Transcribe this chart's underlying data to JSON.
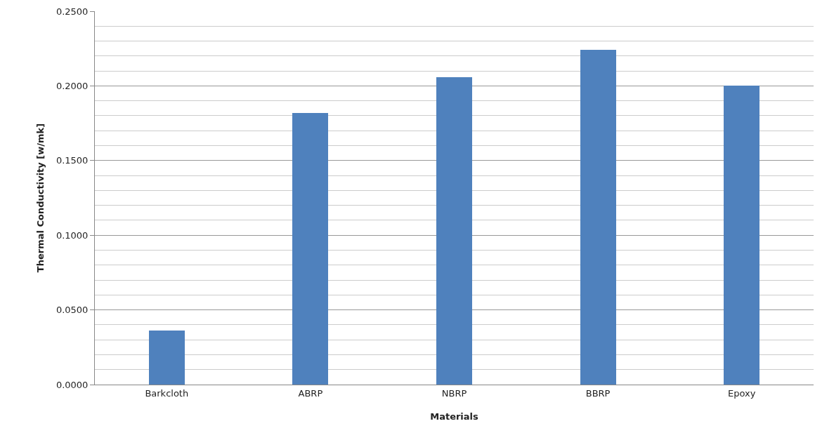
{
  "chart_data": {
    "type": "bar",
    "xlabel": "Materials",
    "ylabel": "Thermal Conductivity [w/mk]",
    "categories": [
      "Barkcloth",
      "ABRP",
      "NBRP",
      "BBRP",
      "Epoxy"
    ],
    "series": [
      {
        "color": "#4f81bd",
        "values": [
          0.036,
          0.182,
          0.206,
          0.224,
          0.2
        ]
      }
    ],
    "ylim": [
      0,
      0.25
    ],
    "yticks": [
      {
        "value": 0,
        "label": "0.0000"
      },
      {
        "value": 0.05,
        "label": "0.0500"
      },
      {
        "value": 0.1,
        "label": "0.1000"
      },
      {
        "value": 0.15,
        "label": "0.1500"
      },
      {
        "value": 0.2,
        "label": "0.2000"
      },
      {
        "value": 0.25,
        "label": "0.2500"
      }
    ],
    "grid": "y"
  }
}
